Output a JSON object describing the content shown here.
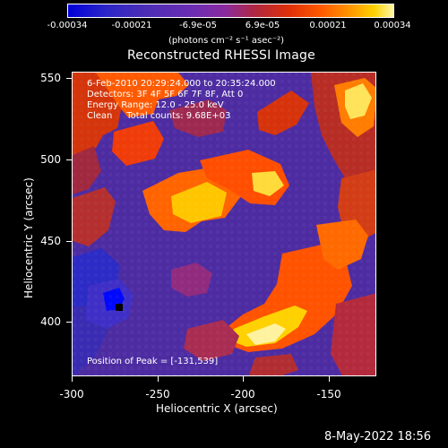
{
  "colorbar": {
    "ticks": [
      "-0.00034",
      "-0.00021",
      "-6.9e-05",
      "6.9e-05",
      "0.00021",
      "0.00034"
    ],
    "units": "(photons cm⁻² s⁻¹ asec⁻²)"
  },
  "title": "Reconstructed RHESSI Image",
  "overlay": {
    "line1": "6-Feb-2010 20:29:24.000 to 20:35:24.000",
    "line2": "Detectors: 3F 4F 5F 6F 7F 8F, Att 0",
    "line3": "Energy Range: 12.0 - 25.0 keV",
    "line4": "Clean     Total counts: 9.68E+03",
    "peak": "Position of Peak = [-131,539]"
  },
  "axes": {
    "xlabel": "Heliocentric X (arcsec)",
    "ylabel": "Heliocentric Y (arcsec)",
    "xticks": [
      "-300",
      "-250",
      "-200",
      "-150"
    ],
    "yticks": [
      "550",
      "500",
      "450",
      "400"
    ]
  },
  "timestamp": "8-May-2022 18:56",
  "colors": {
    "background": "#000000",
    "low": "#0000d8",
    "mid_low": "#6a2db2",
    "mid": "#b1283d",
    "high": "#ff5b00",
    "peak": "#fff7a8"
  }
}
